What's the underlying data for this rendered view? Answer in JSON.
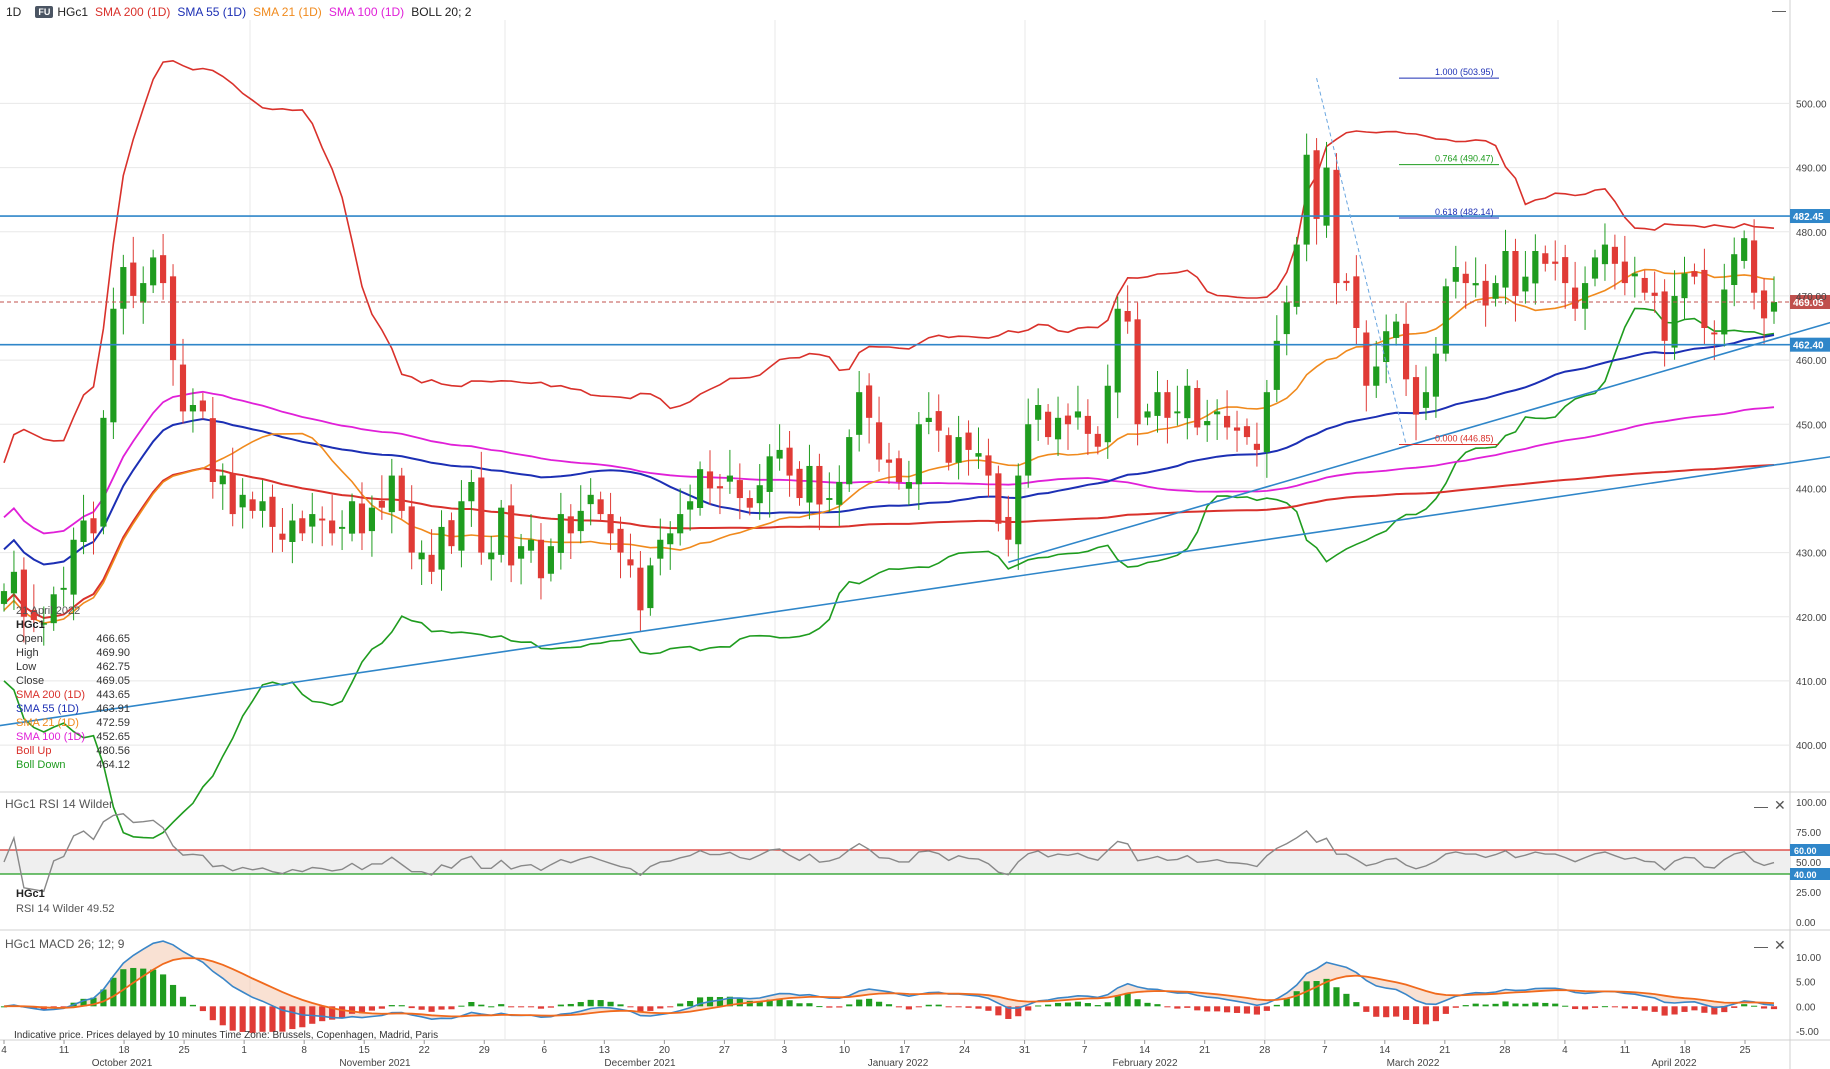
{
  "header": {
    "interval": "1D",
    "badge": "FU",
    "symbol": "HGc1",
    "indicators": [
      {
        "label": "SMA 200 (1D)",
        "color": "#d9312b"
      },
      {
        "label": "SMA 55 (1D)",
        "color": "#1c2fb4"
      },
      {
        "label": "SMA 21 (1D)",
        "color": "#f08a1d"
      },
      {
        "label": "SMA 100 (1D)",
        "color": "#e020d8"
      },
      {
        "label": "BOLL 20; 2",
        "color": "#222222"
      }
    ]
  },
  "legend": {
    "date": "21 April 2022",
    "symbol": "HGc1",
    "rows": [
      {
        "label": "Open",
        "value": "466.65",
        "color": "#333333"
      },
      {
        "label": "High",
        "value": "469.90",
        "color": "#333333"
      },
      {
        "label": "Low",
        "value": "462.75",
        "color": "#333333"
      },
      {
        "label": "Close",
        "value": "469.05",
        "color": "#333333"
      },
      {
        "label": "SMA 200 (1D)",
        "value": "443.65",
        "color": "#d9312b"
      },
      {
        "label": "SMA 55 (1D)",
        "value": "463.91",
        "color": "#1c2fb4"
      },
      {
        "label": "SMA 21 (1D)",
        "value": "472.59",
        "color": "#f08a1d"
      },
      {
        "label": "SMA 100 (1D)",
        "value": "452.65",
        "color": "#e020d8"
      },
      {
        "label": "Boll Up",
        "value": "480.56",
        "color": "#d9312b"
      },
      {
        "label": "Boll Down",
        "value": "464.12",
        "color": "#1f9c1f"
      }
    ]
  },
  "rsi_panel": {
    "title": "HGc1  RSI 14 Wilder",
    "symbol": "HGc1",
    "readout": "RSI 14 Wilder 49.52"
  },
  "macd_panel": {
    "title": "HGc1  MACD 26; 12; 9"
  },
  "footnote": "Indicative price. Prices delayed by 10 minutes   Time Zone: Brussels, Copenhagen, Madrid, Paris",
  "colors": {
    "up": "#1f9c1f",
    "down": "#e03b36",
    "trend": "#2f86c9",
    "grid": "#e8e8e8"
  },
  "chart_data": [
    {
      "type": "candlestick",
      "title": "HGc1",
      "ylim": [
        393,
        513
      ],
      "y_ticks": [
        "400.00",
        "410.00",
        "420.00",
        "430.00",
        "440.00",
        "450.00",
        "460.00",
        "470.00",
        "480.00",
        "490.00",
        "500.00"
      ],
      "x_day_labels": [
        "4",
        "11",
        "18",
        "25",
        "1",
        "8",
        "15",
        "22",
        "29",
        "6",
        "13",
        "20",
        "27",
        "3",
        "10",
        "17",
        "24",
        "31",
        "7",
        "14",
        "21",
        "28",
        "7",
        "14",
        "21",
        "28",
        "4",
        "11",
        "18",
        "25"
      ],
      "x_month_labels": [
        "October 2021",
        "November 2021",
        "December 2021",
        "January 2022",
        "February 2022",
        "March 2022",
        "April 2022"
      ],
      "levels": [
        {
          "value": 482.45,
          "label": "482.45",
          "color": "#2f86c9"
        },
        {
          "value": 469.05,
          "label": "469.05",
          "color": "#c0504d",
          "dashed": true
        },
        {
          "value": 462.4,
          "label": "462.40",
          "color": "#2f86c9"
        }
      ],
      "fibonacci": [
        {
          "label": "1.000 (503.95)",
          "value": 503.95,
          "color": "#1c2fb4"
        },
        {
          "label": "0.764 (490.47)",
          "value": 490.47,
          "color": "#1f9c1f"
        },
        {
          "label": "0.618 (482.14)",
          "value": 482.14,
          "color": "#1c2fb4"
        },
        {
          "label": "0.000 (446.85)",
          "value": 446.85,
          "color": "#d9312b"
        }
      ],
      "closes": [
        424.0,
        427.0,
        420.0,
        419.5,
        419.0,
        423.5,
        424.5,
        432.0,
        435.0,
        433.0,
        451.0,
        468.0,
        474.5,
        470.0,
        472.0,
        476.0,
        472.0,
        460.0,
        452.0,
        453.0,
        452.0,
        441.0,
        442.0,
        436.0,
        439.0,
        436.5,
        438.0,
        434.0,
        432.0,
        435.0,
        433.0,
        436.0,
        435.0,
        433.0,
        434.0,
        438.0,
        433.0,
        437.0,
        437.0,
        442.0,
        436.5,
        430.0,
        430.0,
        427.0,
        434.0,
        431.0,
        438.0,
        441.0,
        430.0,
        430.0,
        437.0,
        428.0,
        431.0,
        432.0,
        426.0,
        431.0,
        436.0,
        433.0,
        436.5,
        439.0,
        436.0,
        433.0,
        430.0,
        428.0,
        421.0,
        428.0,
        432.0,
        433.0,
        436.0,
        438.0,
        443.0,
        440.0,
        440.0,
        442.0,
        438.5,
        437.0,
        440.5,
        445.0,
        446.0,
        442.0,
        438.5,
        443.5,
        437.5,
        438.5,
        441.0,
        448.0,
        455.0,
        451.0,
        444.5,
        444.0,
        441.0,
        441.0,
        450.0,
        451.0,
        449.0,
        444.0,
        448.0,
        446.0,
        445.5,
        442.0,
        434.5,
        432.0,
        442.0,
        450.0,
        453.0,
        448.0,
        451.0,
        450.0,
        452.0,
        448.5,
        446.5,
        456.0,
        468.0,
        466.0,
        450.0,
        452.0,
        455.0,
        451.0,
        452.0,
        456.0,
        449.5,
        450.5,
        452.0,
        449.5,
        449.0,
        448.0,
        446.0,
        455.0,
        463.0,
        469.0,
        478.0,
        492.0,
        482.0,
        490.0,
        472.0,
        472.0,
        465.0,
        456.0,
        459.0,
        464.5,
        466.0,
        457.0,
        451.5,
        455.0,
        461.0,
        471.5,
        474.5,
        472.0,
        472.0,
        468.5,
        472.0,
        477.0,
        470.0,
        473.0,
        477.0,
        475.0,
        475.0,
        472.0,
        468.0,
        472.0,
        476.0,
        478.0,
        475.0,
        472.0,
        473.5,
        470.5,
        470.0,
        463.0,
        470.0,
        473.5,
        473.0,
        465.0,
        464.0,
        471.0,
        476.5,
        479.0,
        470.5,
        466.5,
        469.05
      ],
      "sma200": [
        422.0,
        443.65
      ],
      "sma55": [
        430.5,
        463.91
      ],
      "sma21": [
        421.0,
        472.59
      ],
      "sma100": [
        435.5,
        452.65
      ],
      "boll_up": [
        444.0,
        480.56
      ],
      "boll_down": [
        410.0,
        464.12
      ]
    },
    {
      "type": "line",
      "title": "RSI 14 Wilder",
      "ylim": [
        0,
        100
      ],
      "y_ticks": [
        "0.00",
        "25.00",
        "50.00",
        "75.00",
        "100.00"
      ],
      "levels": [
        {
          "value": 60,
          "label": "60.00"
        },
        {
          "value": 40,
          "label": "40.00"
        }
      ],
      "last": 49.52
    },
    {
      "type": "bar",
      "title": "MACD 26; 12; 9",
      "ylim": [
        -6,
        13
      ],
      "y_ticks": [
        "-5.00",
        "0.00",
        "5.00",
        "10.00"
      ]
    }
  ]
}
